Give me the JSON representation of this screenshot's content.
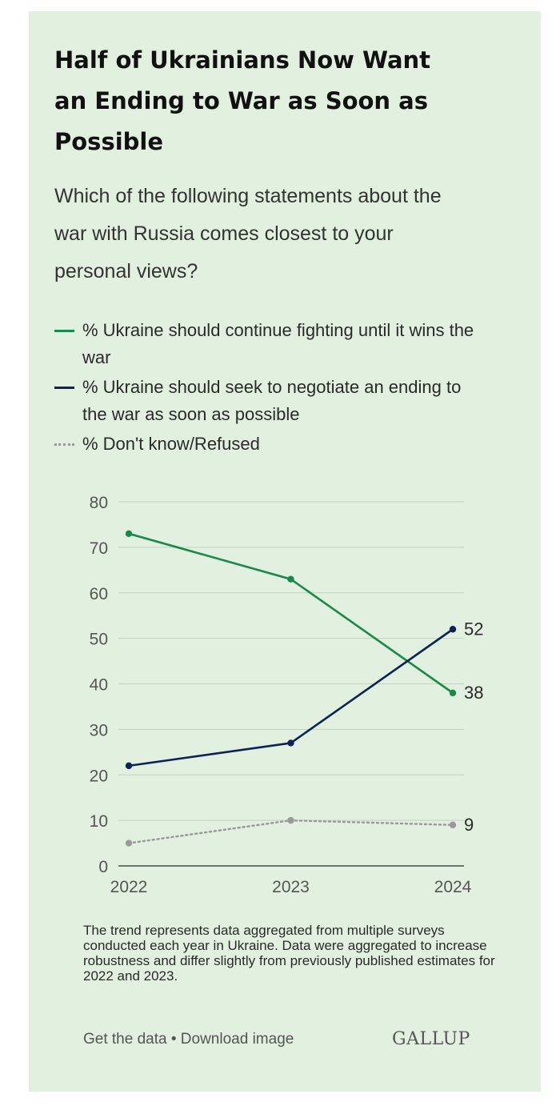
{
  "chart_data": {
    "type": "line",
    "title": "Half of Ukrainians Now Want an Ending to War as Soon as Possible",
    "subtitle": "Which of the following statements about the war with Russia comes closest to your personal views?",
    "x": [
      "2022",
      "2023",
      "2024"
    ],
    "ylim": [
      0,
      80
    ],
    "yticks": [
      "0",
      "10",
      "20",
      "30",
      "40",
      "50",
      "60",
      "70",
      "80"
    ],
    "grid": true,
    "legend_position": "top",
    "series": [
      {
        "name": "% Ukraine should continue fighting until it wins the war",
        "color": "#1a8a4c",
        "style": "solid",
        "values": [
          73,
          63,
          38
        ],
        "end_label": "38"
      },
      {
        "name": "% Ukraine should seek to negotiate an ending to the war as soon as possible",
        "color": "#0e2257",
        "style": "solid",
        "values": [
          22,
          27,
          52
        ],
        "end_label": "52"
      },
      {
        "name": "% Don't know/Refused",
        "color": "#9a9a9a",
        "style": "dotted",
        "values": [
          5,
          10,
          9
        ],
        "end_label": "9"
      }
    ]
  },
  "note": "The trend represents data aggregated from multiple surveys conducted each year in Ukraine. Data were aggregated to increase robustness and differ slightly from previously published estimates for 2022 and 2023.",
  "footer": {
    "get_data": "Get the data",
    "separator": " • ",
    "download": "Download image",
    "brand": "GALLUP"
  }
}
